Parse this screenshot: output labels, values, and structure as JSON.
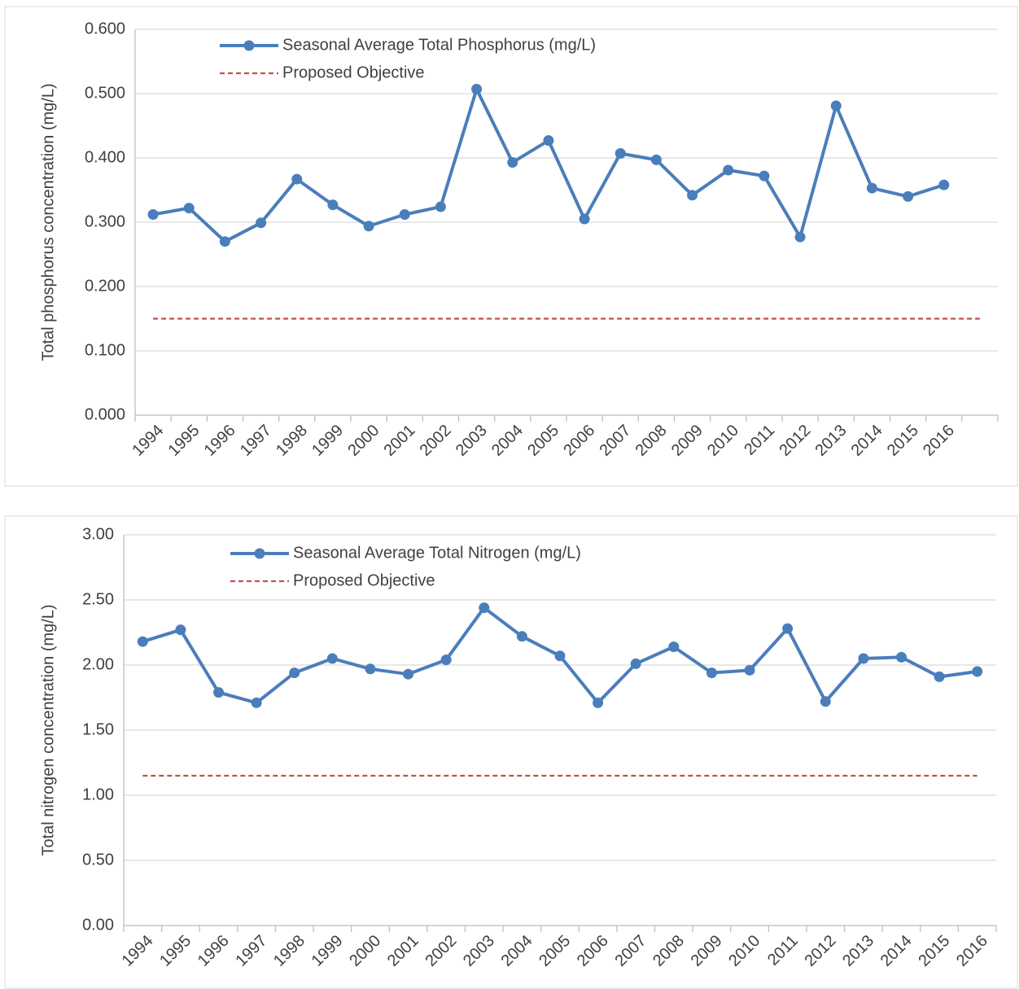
{
  "chart_data": [
    {
      "type": "line",
      "y_label": "Total phosphorus concentration (mg/L)",
      "categories": [
        "1994",
        "1995",
        "1996",
        "1997",
        "1998",
        "1999",
        "2000",
        "2001",
        "2002",
        "2003",
        "2004",
        "2005",
        "2006",
        "2007",
        "2008",
        "2009",
        "2010",
        "2011",
        "2012",
        "2013",
        "2014",
        "2015",
        "2016",
        null
      ],
      "series": [
        {
          "name": "Seasonal Average Total Phosphorus (mg/L)",
          "color": "#4a7ebb",
          "markers": true,
          "dashed": false,
          "values": [
            0.312,
            0.322,
            0.27,
            0.299,
            0.367,
            0.327,
            0.294,
            0.312,
            0.324,
            0.507,
            0.393,
            0.427,
            0.305,
            0.407,
            0.397,
            0.342,
            0.381,
            0.372,
            0.277,
            0.481,
            0.353,
            0.34,
            0.358,
            null
          ]
        },
        {
          "name": "Proposed Objective",
          "color": "#c0504d",
          "markers": false,
          "dashed": true,
          "values": [
            0.15,
            0.15,
            0.15,
            0.15,
            0.15,
            0.15,
            0.15,
            0.15,
            0.15,
            0.15,
            0.15,
            0.15,
            0.15,
            0.15,
            0.15,
            0.15,
            0.15,
            0.15,
            0.15,
            0.15,
            0.15,
            0.15,
            0.15,
            0.15
          ]
        }
      ],
      "ylim": [
        0,
        0.6
      ],
      "yticks": [
        {
          "value": 0,
          "label": "0.000"
        },
        {
          "value": 0.1,
          "label": "0.100"
        },
        {
          "value": 0.2,
          "label": "0.200"
        },
        {
          "value": 0.3,
          "label": "0.300"
        },
        {
          "value": 0.4,
          "label": "0.400"
        },
        {
          "value": 0.5,
          "label": "0.500"
        },
        {
          "value": 0.6,
          "label": "0.600"
        }
      ],
      "grid": true
    },
    {
      "type": "line",
      "y_label": "Total nitrogen concentration (mg/L)",
      "categories": [
        "1994",
        "1995",
        "1996",
        "1997",
        "1998",
        "1999",
        "2000",
        "2001",
        "2002",
        "2003",
        "2004",
        "2005",
        "2006",
        "2007",
        "2008",
        "2009",
        "2010",
        "2011",
        "2012",
        "2013",
        "2014",
        "2015",
        "2016"
      ],
      "series": [
        {
          "name": "Seasonal Average Total Nitrogen (mg/L)",
          "color": "#4a7ebb",
          "markers": true,
          "dashed": false,
          "values": [
            2.18,
            2.27,
            1.79,
            1.71,
            1.94,
            2.05,
            1.97,
            1.93,
            2.04,
            2.44,
            2.22,
            2.07,
            1.71,
            2.01,
            2.14,
            1.94,
            1.96,
            2.28,
            1.72,
            2.05,
            2.06,
            1.91,
            1.95
          ]
        },
        {
          "name": "Proposed Objective",
          "color": "#c0504d",
          "markers": false,
          "dashed": true,
          "values": [
            1.15,
            1.15,
            1.15,
            1.15,
            1.15,
            1.15,
            1.15,
            1.15,
            1.15,
            1.15,
            1.15,
            1.15,
            1.15,
            1.15,
            1.15,
            1.15,
            1.15,
            1.15,
            1.15,
            1.15,
            1.15,
            1.15,
            1.15
          ]
        }
      ],
      "ylim": [
        0,
        3
      ],
      "yticks": [
        {
          "value": 0,
          "label": "0.00"
        },
        {
          "value": 0.5,
          "label": "0.50"
        },
        {
          "value": 1,
          "label": "1.00"
        },
        {
          "value": 1.5,
          "label": "1.50"
        },
        {
          "value": 2,
          "label": "2.00"
        },
        {
          "value": 2.5,
          "label": "2.50"
        },
        {
          "value": 3,
          "label": "3.00"
        }
      ],
      "grid": true
    }
  ]
}
